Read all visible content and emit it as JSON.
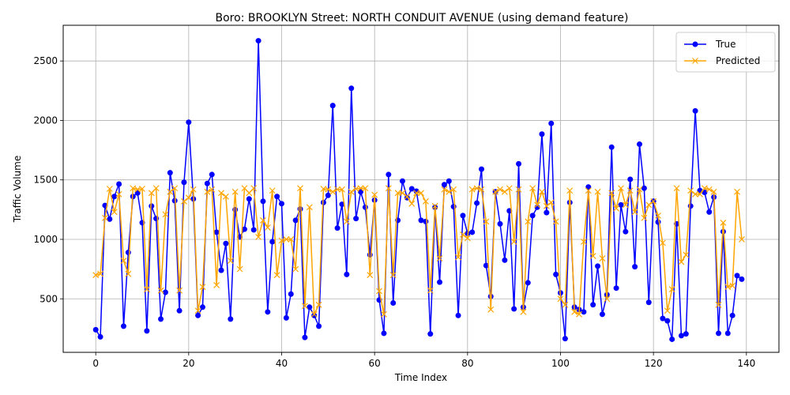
{
  "chart_data": {
    "type": "line",
    "title": "Boro: BROOKLYN Street: NORTH CONDUIT AVENUE (using demand feature)",
    "xlabel": "Time Index",
    "ylabel": "Traffic Volume",
    "xlim": [
      -7,
      147
    ],
    "ylim": [
      50,
      2800
    ],
    "xticks": [
      0,
      20,
      40,
      60,
      80,
      100,
      120,
      140
    ],
    "yticks": [
      500,
      1000,
      1500,
      2000,
      2500
    ],
    "grid": true,
    "legend": "top-right",
    "series": [
      {
        "name": "True",
        "color": "#0000ff",
        "marker": "circle",
        "values": [
          240,
          180,
          1285,
          1170,
          1360,
          1465,
          270,
          890,
          1360,
          1390,
          1140,
          230,
          1280,
          1175,
          330,
          555,
          1560,
          1325,
          400,
          1480,
          1985,
          1340,
          360,
          430,
          1470,
          1545,
          1060,
          740,
          965,
          330,
          1250,
          1020,
          1085,
          1340,
          1080,
          2670,
          1320,
          390,
          980,
          1360,
          1300,
          340,
          540,
          1160,
          1255,
          175,
          430,
          360,
          270,
          1310,
          1370,
          2125,
          1095,
          1295,
          705,
          2270,
          1175,
          1400,
          1270,
          870,
          1330,
          490,
          210,
          1545,
          465,
          1160,
          1490,
          1350,
          1425,
          1405,
          1160,
          1150,
          205,
          1270,
          640,
          1460,
          1490,
          1275,
          360,
          1200,
          1050,
          1060,
          1305,
          1590,
          780,
          520,
          1400,
          1130,
          825,
          1240,
          415,
          1635,
          430,
          635,
          1200,
          1270,
          1885,
          1225,
          1975,
          705,
          550,
          165,
          1310,
          430,
          410,
          390,
          1440,
          450,
          775,
          370,
          535,
          1775,
          590,
          1290,
          1065,
          1505,
          770,
          1800,
          1430,
          470,
          1320,
          1145,
          335,
          315,
          160,
          1130,
          190,
          205,
          1280,
          2080,
          1410,
          1395,
          1230,
          1355,
          210,
          1065,
          210,
          360,
          695,
          665
        ]
      },
      {
        "name": "Predicted",
        "color": "#ffa500",
        "marker": "x",
        "values": [
          700,
          710,
          1180,
          1425,
          1230,
          1380,
          820,
          710,
          1430,
          1420,
          1425,
          580,
          1390,
          1430,
          570,
          1210,
          1400,
          1430,
          570,
          1320,
          1350,
          1420,
          400,
          600,
          1400,
          1420,
          615,
          1390,
          1360,
          820,
          1400,
          750,
          1430,
          1390,
          1430,
          1020,
          1160,
          1100,
          1410,
          700,
          990,
          1000,
          1000,
          750,
          1430,
          440,
          1270,
          370,
          450,
          1425,
          1420,
          1400,
          1420,
          1420,
          1150,
          1400,
          1425,
          1430,
          1430,
          700,
          1375,
          565,
          370,
          1430,
          700,
          1390,
          1390,
          1360,
          1300,
          1390,
          1390,
          1320,
          570,
          1280,
          840,
          1420,
          1400,
          1420,
          850,
          1040,
          1010,
          1420,
          1430,
          1420,
          1150,
          410,
          1400,
          1420,
          1400,
          1430,
          980,
          1420,
          390,
          1150,
          1430,
          1290,
          1400,
          1280,
          1310,
          1150,
          500,
          450,
          1410,
          390,
          370,
          980,
          1410,
          860,
          1400,
          840,
          500,
          1390,
          1260,
          1430,
          1290,
          1410,
          1230,
          1420,
          1180,
          1290,
          1320,
          1200,
          970,
          400,
          580,
          1430,
          810,
          870,
          1410,
          1380,
          1380,
          1430,
          1420,
          1400,
          450,
          1140,
          600,
          610,
          1400,
          1000
        ]
      }
    ]
  }
}
